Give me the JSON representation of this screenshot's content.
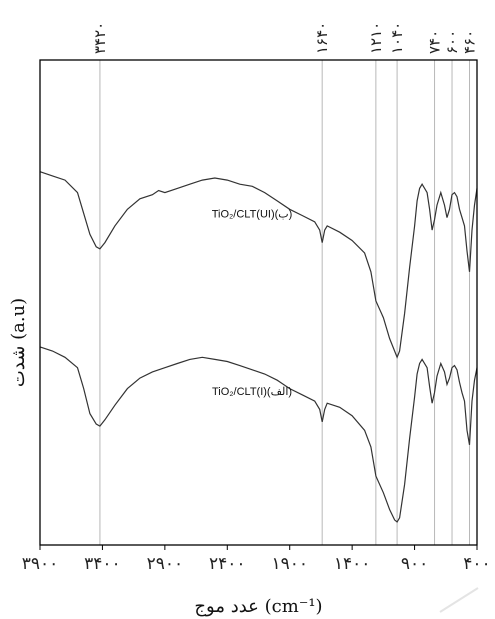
{
  "chart_data": {
    "type": "line",
    "title": "",
    "xlabel": "عدد موج (cm⁻¹)",
    "ylabel": "شدت (a.u)",
    "x_reversed": true,
    "xlim": [
      3900,
      400
    ],
    "ylim": [
      0,
      10
    ],
    "grid": false,
    "x_ticks": [
      3900,
      3400,
      2900,
      2400,
      1900,
      1400,
      900,
      400
    ],
    "x_tick_labels": [
      "۳۹۰۰",
      "۳۴۰۰",
      "۲۹۰۰",
      "۲۴۰۰",
      "۱۹۰۰",
      "۱۴۰۰",
      "۹۰۰",
      "۴۰۰"
    ],
    "peak_markers": [
      {
        "x": 3420,
        "label": "۳۴۲۰"
      },
      {
        "x": 1640,
        "label": "۱۶۴۰"
      },
      {
        "x": 1210,
        "label": "۱۲۱۰"
      },
      {
        "x": 1040,
        "label": "۱۰۴۰"
      },
      {
        "x": 740,
        "label": "۷۴۰"
      },
      {
        "x": 600,
        "label": "۶۰۰"
      },
      {
        "x": 460,
        "label": "۴۶۰"
      }
    ],
    "series": [
      {
        "name": "TiO₂/CLT(UI)(ب)",
        "x": [
          3900,
          3800,
          3700,
          3600,
          3550,
          3500,
          3450,
          3420,
          3380,
          3300,
          3200,
          3100,
          3000,
          2950,
          2900,
          2800,
          2700,
          2600,
          2500,
          2400,
          2300,
          2200,
          2100,
          2000,
          1900,
          1800,
          1700,
          1660,
          1640,
          1620,
          1600,
          1500,
          1400,
          1300,
          1250,
          1210,
          1150,
          1100,
          1060,
          1040,
          1020,
          980,
          940,
          900,
          880,
          860,
          840,
          800,
          780,
          760,
          740,
          720,
          690,
          660,
          640,
          620,
          600,
          580,
          560,
          540,
          520,
          500,
          480,
          460,
          440,
          420,
          400
        ],
        "y": [
          8.4,
          8.3,
          8.2,
          7.9,
          7.4,
          6.9,
          6.6,
          6.55,
          6.7,
          7.1,
          7.5,
          7.75,
          7.85,
          7.95,
          7.9,
          8.0,
          8.1,
          8.2,
          8.25,
          8.2,
          8.1,
          8.05,
          7.9,
          7.7,
          7.5,
          7.35,
          7.2,
          7.0,
          6.7,
          7.0,
          7.1,
          6.95,
          6.75,
          6.45,
          6.0,
          5.3,
          4.9,
          4.4,
          4.1,
          3.95,
          4.1,
          5.0,
          6.1,
          7.1,
          7.7,
          8.0,
          8.1,
          7.9,
          7.5,
          7.0,
          7.25,
          7.6,
          7.9,
          7.6,
          7.3,
          7.5,
          7.85,
          7.9,
          7.8,
          7.5,
          7.3,
          7.1,
          6.5,
          6.0,
          7.0,
          7.6,
          8.0
        ]
      },
      {
        "name": "TiO₂/CLT(I)(الف)",
        "x": [
          3900,
          3800,
          3700,
          3600,
          3550,
          3500,
          3450,
          3420,
          3380,
          3300,
          3200,
          3100,
          3000,
          2900,
          2800,
          2700,
          2600,
          2500,
          2400,
          2300,
          2200,
          2100,
          2000,
          1900,
          1800,
          1700,
          1660,
          1640,
          1620,
          1600,
          1500,
          1400,
          1300,
          1250,
          1210,
          1150,
          1100,
          1060,
          1040,
          1020,
          980,
          940,
          900,
          880,
          860,
          840,
          800,
          780,
          760,
          740,
          720,
          690,
          660,
          640,
          620,
          600,
          580,
          560,
          540,
          520,
          500,
          480,
          460,
          440,
          420,
          400
        ],
        "y": [
          4.2,
          4.1,
          3.95,
          3.7,
          3.2,
          2.6,
          2.35,
          2.3,
          2.45,
          2.8,
          3.2,
          3.45,
          3.6,
          3.7,
          3.8,
          3.9,
          3.95,
          3.9,
          3.85,
          3.75,
          3.65,
          3.55,
          3.4,
          3.2,
          3.05,
          2.9,
          2.7,
          2.4,
          2.7,
          2.85,
          2.75,
          2.55,
          2.2,
          1.8,
          1.1,
          0.7,
          0.3,
          0.05,
          0.0,
          0.1,
          0.9,
          2.0,
          3.0,
          3.55,
          3.8,
          3.9,
          3.7,
          3.25,
          2.85,
          3.1,
          3.5,
          3.8,
          3.6,
          3.3,
          3.45,
          3.7,
          3.75,
          3.65,
          3.35,
          3.1,
          2.9,
          2.2,
          1.85,
          2.9,
          3.4,
          3.7
        ]
      }
    ]
  }
}
